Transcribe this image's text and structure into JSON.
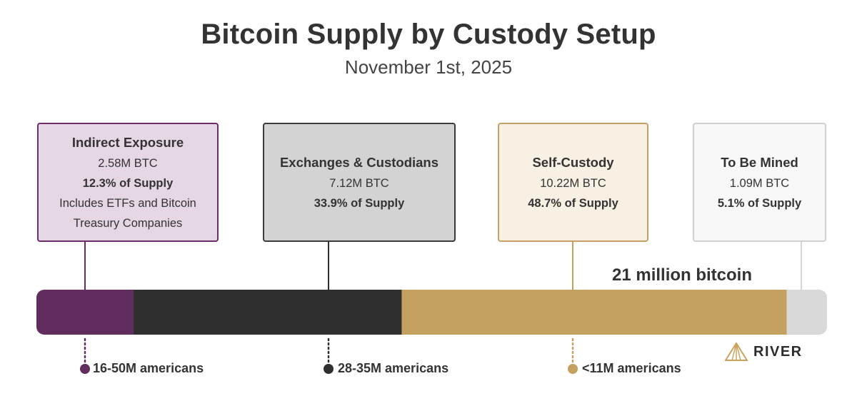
{
  "chart_data": {
    "type": "stacked_bar",
    "title": "Bitcoin Supply by Custody Setup",
    "subtitle": "November 1st, 2025",
    "total_label": "21 million bitcoin",
    "total_btc_millions": 21,
    "segments": [
      {
        "name": "Indirect Exposure",
        "btc": "2.58M BTC",
        "btc_millions": 2.58,
        "share_label": "12.3% of Supply",
        "share_pct": 12.3,
        "note_lines": [
          "Includes ETFs and Bitcoin",
          "Treasury Companies"
        ],
        "color": "#612c5e",
        "americans": "16-50M americans"
      },
      {
        "name": "Exchanges & Custodians",
        "btc": "7.12M BTC",
        "btc_millions": 7.12,
        "share_label": "33.9% of Supply",
        "share_pct": 33.9,
        "note_lines": [],
        "color": "#2f2f2f",
        "americans": "28-35M americans"
      },
      {
        "name": "Self-Custody",
        "btc": "10.22M BTC",
        "btc_millions": 10.22,
        "share_label": "48.7% of Supply",
        "share_pct": 48.7,
        "note_lines": [],
        "color": "#c5a160",
        "americans": "<11M americans"
      },
      {
        "name": "To Be Mined",
        "btc": "1.09M BTC",
        "btc_millions": 1.09,
        "share_label": "5.1% of Supply",
        "share_pct": 5.1,
        "note_lines": [],
        "color": "#d9d9d9",
        "americans": null
      }
    ]
  },
  "card_colors": {
    "indirect_bg": "#e5d8e4",
    "exchanges_bg": "#d3d3d3",
    "self_bg": "#f8f0e3",
    "mined_bg": "#f8f8f8"
  },
  "logo": {
    "text": "RIVER",
    "icon": "river-mountain-icon",
    "color": "#c9a25b"
  }
}
